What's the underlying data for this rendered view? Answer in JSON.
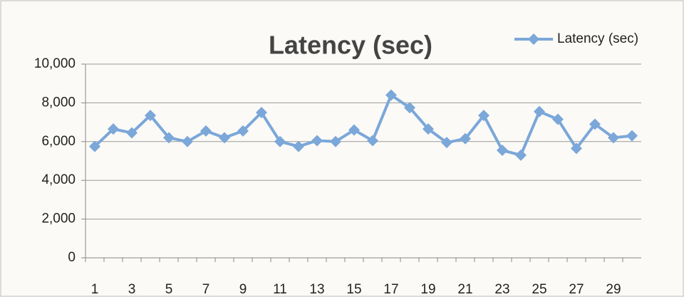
{
  "chart_data": {
    "type": "line",
    "title": "Latency (sec)",
    "categories": [
      "1",
      null,
      "3",
      null,
      "5",
      null,
      "7",
      null,
      "9",
      null,
      "11",
      null,
      "13",
      null,
      "15",
      null,
      "17",
      null,
      "19",
      null,
      "21",
      null,
      "23",
      null,
      "25",
      null,
      "27",
      null,
      "29",
      null
    ],
    "series": [
      {
        "name": "Latency (sec)",
        "color": "#7ba7d9",
        "values": [
          5750,
          6650,
          6450,
          7350,
          6200,
          6000,
          6550,
          6200,
          6550,
          7500,
          6000,
          5750,
          6050,
          6000,
          6600,
          6050,
          8400,
          7750,
          6650,
          5950,
          6150,
          7350,
          5550,
          5300,
          7550,
          7150,
          5650,
          6900,
          6200,
          6300
        ]
      }
    ],
    "ylim": [
      0,
      10000
    ],
    "yticks": [
      0,
      {
        "value": 2000,
        "label": "2,000"
      },
      {
        "value": 4000,
        "label": "4,000"
      },
      {
        "value": 6000,
        "label": "6,000"
      },
      {
        "value": 8000,
        "label": "8,000"
      },
      {
        "value": 10000,
        "label": "10,000"
      }
    ],
    "grid": true,
    "legend": "top-right"
  }
}
